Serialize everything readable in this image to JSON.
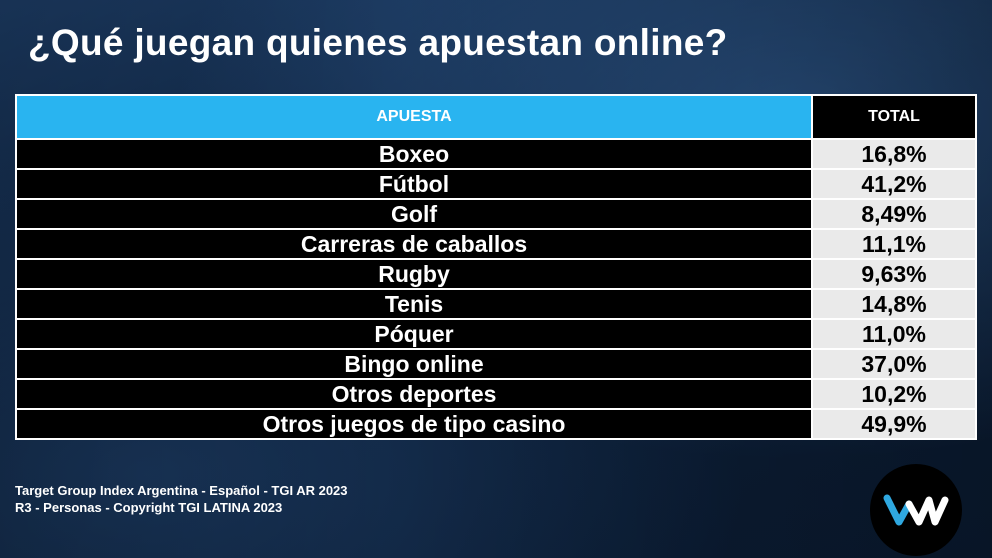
{
  "title": "¿Qué juegan quienes apuestan online?",
  "chart_data": {
    "type": "table",
    "columns": [
      "APUESTA",
      "TOTAL"
    ],
    "rows": [
      {
        "category": "Boxeo",
        "value": "16,8%"
      },
      {
        "category": "Fútbol",
        "value": "41,2%"
      },
      {
        "category": "Golf",
        "value": "8,49%"
      },
      {
        "category": "Carreras de caballos",
        "value": "11,1%"
      },
      {
        "category": "Rugby",
        "value": "9,63%"
      },
      {
        "category": "Tenis",
        "value": "14,8%"
      },
      {
        "category": "Póquer",
        "value": "11,0%"
      },
      {
        "category": "Bingo online",
        "value": "37,0%"
      },
      {
        "category": "Otros deportes",
        "value": "10,2%"
      },
      {
        "category": "Otros juegos de tipo casino",
        "value": "49,9%"
      }
    ]
  },
  "footer": {
    "line1": "Target Group Index Argentina - Español  - TGI AR 2023",
    "line2": "R3 - Personas - Copyright TGI LATINA 2023"
  },
  "logo": {
    "icon": "wm-logo-icon",
    "text": "WM"
  },
  "colors": {
    "header_blue": "#29b4f0",
    "value_bg": "#eaeaea",
    "logo_blue": "#2fa8e0"
  }
}
